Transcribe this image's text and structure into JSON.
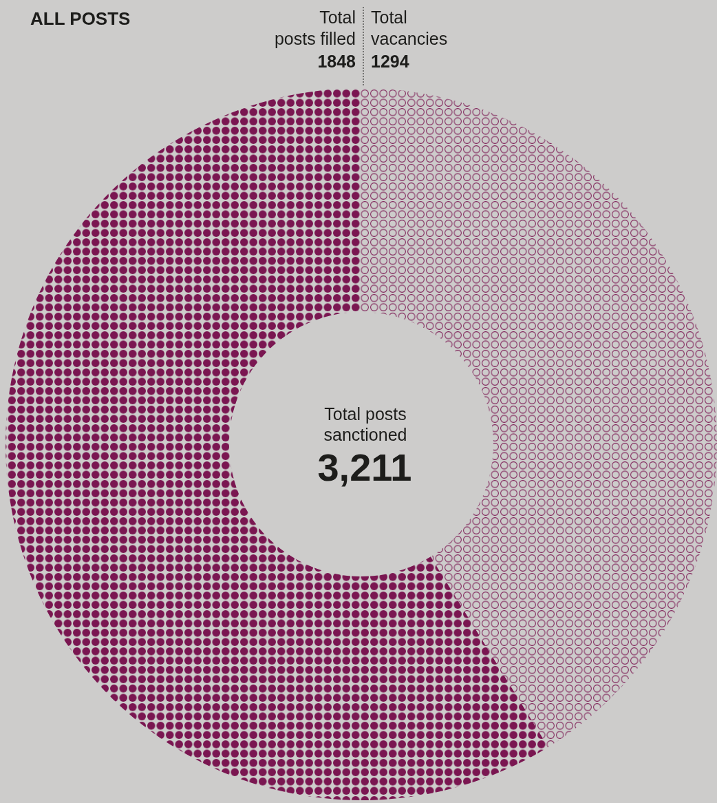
{
  "chart_data": {
    "type": "donut",
    "title": "ALL POSTS",
    "categories": [
      "Total posts filled",
      "Total vacancies"
    ],
    "values": [
      1848,
      1294
    ],
    "colors": [
      "#7a1651",
      "#7a1651"
    ],
    "data_labels": true,
    "annotations": [
      "Total posts sanctioned",
      "3,211"
    ]
  }
}
